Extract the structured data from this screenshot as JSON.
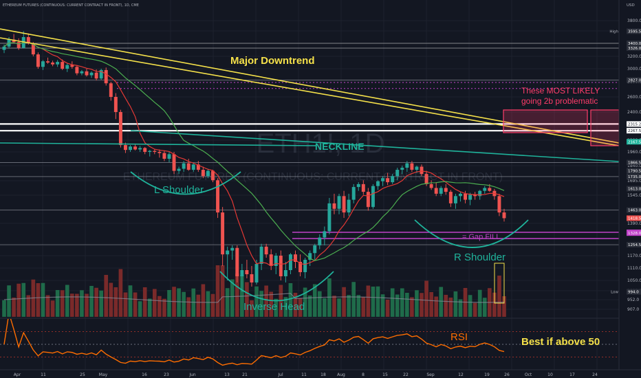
{
  "header": {
    "symbol_line": "ETHEREUM FUTURES (CONTINUOUS: CURRENT CONTRACT IN FRONT), 1D, CME",
    "currency": "USD"
  },
  "watermark": {
    "ticker": "ETH1!, 1D",
    "subtitle": "ETHEREUM FUTURES (CONTINUOUS: CURRENT CONTRACT IN FRONT)"
  },
  "colors": {
    "background": "#131722",
    "up": "#26a69a",
    "down": "#ef5350",
    "trendline": "#f5e14a",
    "neckline": "#1fb39b",
    "pink": "#ff3d6a",
    "purple": "#c042c8",
    "white_line": "#ffffff",
    "ma_fast": "#e53935",
    "ma_slow": "#4caf50",
    "rsi": "#ff6d00"
  },
  "annotations": {
    "major_downtrend": "Major Downtrend",
    "neckline": "NECKLINE",
    "l_shoulder": "L Shoulder",
    "inverse_head": "Inverse Head",
    "r_shoulder": "R Shoulder",
    "gap_fill": "= Gap FILL",
    "likely_line1": "These MOST LIKELY",
    "likely_line2": "going 2b problematic",
    "rsi": "RSI",
    "best_if": "Best if above 50"
  },
  "chart_data": {
    "type": "candlestick",
    "y_axis_labels": [
      "3800.0",
      "3600.0",
      "3400.0",
      "3200.0",
      "3000.0",
      "2800.0",
      "2600.0",
      "2400.0",
      "2200.0",
      "1960.0",
      "1840.0",
      "1695.0",
      "1545.0",
      "1390.0",
      "1250.0",
      "1170.0",
      "1110.0",
      "1050.0",
      "1000.0",
      "952.0",
      "907.0"
    ],
    "x_axis_labels": [
      "Apr",
      "11",
      "25",
      "May",
      "16",
      "23",
      "Jun",
      "13",
      "21",
      "Jul",
      "11",
      "18",
      "Aug",
      "8",
      "15",
      "22",
      "Sep",
      "12",
      "19",
      "26",
      "Oct",
      "10",
      "17",
      "24"
    ],
    "price_tags": [
      {
        "label": "High",
        "value": "3595.5",
        "color": "#2a2e39"
      },
      {
        "label": "",
        "value": "3400.0",
        "color": "#2a2e39"
      },
      {
        "label": "",
        "value": "3326.0",
        "color": "#2a2e39"
      },
      {
        "label": "",
        "value": "2827.0",
        "color": "#2a2e39"
      },
      {
        "label": "",
        "value": "2315.2",
        "color": "#ffffff"
      },
      {
        "label": "",
        "value": "2267.5",
        "color": "#ffffff"
      },
      {
        "label": "",
        "value": "2167.5",
        "color": "#1fb39b"
      },
      {
        "label": "",
        "value": "1866.5",
        "color": "#2a2e39"
      },
      {
        "label": "",
        "value": "1790.5",
        "color": "#2a2e39"
      },
      {
        "label": "",
        "value": "1735.0",
        "color": "#2a2e39"
      },
      {
        "label": "",
        "value": "1613.0",
        "color": "#2a2e39"
      },
      {
        "label": "",
        "value": "1463.0",
        "color": "#2a2e39"
      },
      {
        "label": "",
        "value": "1418.5",
        "color": "#ef5350"
      },
      {
        "label": "",
        "value": "1333.0",
        "color": "#c042c8"
      },
      {
        "label": "",
        "value": "1328.0",
        "color": "#c042c8"
      },
      {
        "label": "",
        "value": "1254.5",
        "color": "#2a2e39"
      },
      {
        "label": "Low",
        "value": "994.0",
        "color": "#2a2e39"
      }
    ],
    "rsi_axis_labels": [
      "80.00",
      "60.00",
      "40.00",
      "20.00"
    ],
    "rsi_levels": [
      70,
      50,
      30
    ],
    "candles": [
      [
        3300,
        3380,
        3250,
        3350
      ],
      [
        3350,
        3500,
        3320,
        3460
      ],
      [
        3460,
        3550,
        3400,
        3420
      ],
      [
        3420,
        3480,
        3300,
        3330
      ],
      [
        3330,
        3595.5,
        3320,
        3500
      ],
      [
        3500,
        3560,
        3380,
        3400
      ],
      [
        3400,
        3420,
        3200,
        3230
      ],
      [
        3230,
        3260,
        3000,
        3030
      ],
      [
        3030,
        3140,
        2980,
        3120
      ],
      [
        3120,
        3180,
        3080,
        3100
      ],
      [
        3100,
        3130,
        3040,
        3070
      ],
      [
        3070,
        3140,
        3030,
        3110
      ],
      [
        3110,
        3150,
        2980,
        3000
      ],
      [
        3000,
        3090,
        2950,
        3060
      ],
      [
        3060,
        3120,
        3000,
        3030
      ],
      [
        3030,
        3050,
        2900,
        2930
      ],
      [
        2930,
        2980,
        2900,
        2960
      ],
      [
        2960,
        3000,
        2880,
        2900
      ],
      [
        2900,
        2960,
        2860,
        2940
      ],
      [
        2940,
        2990,
        2820,
        2850
      ],
      [
        2850,
        3000,
        2830,
        2980
      ],
      [
        2980,
        3020,
        2750,
        2780
      ],
      [
        2780,
        2800,
        2550,
        2600
      ],
      [
        2600,
        2650,
        2350,
        2400
      ],
      [
        2400,
        2430,
        2050,
        2100
      ],
      [
        2100,
        2150,
        1950,
        2000
      ],
      [
        2000,
        2100,
        1960,
        2070
      ],
      [
        2070,
        2120,
        1990,
        2010
      ],
      [
        2010,
        2080,
        1960,
        2040
      ],
      [
        2040,
        2060,
        1940,
        1960
      ],
      [
        1960,
        2000,
        1920,
        1980
      ],
      [
        1980,
        2020,
        1940,
        1960
      ],
      [
        1960,
        2010,
        1910,
        1950
      ],
      [
        1950,
        1980,
        1880,
        1900
      ],
      [
        1900,
        1960,
        1870,
        1940
      ],
      [
        1940,
        1960,
        1760,
        1790
      ],
      [
        1790,
        1830,
        1760,
        1810
      ],
      [
        1810,
        1880,
        1780,
        1860
      ],
      [
        1860,
        1900,
        1790,
        1800
      ],
      [
        1800,
        1870,
        1780,
        1850
      ],
      [
        1850,
        1880,
        1780,
        1800
      ],
      [
        1800,
        1830,
        1720,
        1740
      ],
      [
        1740,
        1810,
        1720,
        1790
      ],
      [
        1790,
        1800,
        1680,
        1700
      ],
      [
        1700,
        1720,
        1420,
        1450
      ],
      [
        1450,
        1480,
        1120,
        1180
      ],
      [
        1180,
        1240,
        1050,
        1210
      ],
      [
        1210,
        1250,
        1150,
        1230
      ],
      [
        1230,
        1250,
        1040,
        1070
      ],
      [
        1070,
        1130,
        994,
        1100
      ],
      [
        1100,
        1150,
        1060,
        1080
      ],
      [
        1080,
        1120,
        1020,
        1040
      ],
      [
        1040,
        1150,
        1030,
        1130
      ],
      [
        1130,
        1260,
        1100,
        1240
      ],
      [
        1240,
        1260,
        1160,
        1180
      ],
      [
        1180,
        1220,
        1100,
        1120
      ],
      [
        1120,
        1190,
        1080,
        1170
      ],
      [
        1170,
        1210,
        1050,
        1070
      ],
      [
        1070,
        1140,
        1040,
        1100
      ],
      [
        1100,
        1190,
        1080,
        1180
      ],
      [
        1180,
        1210,
        1110,
        1140
      ],
      [
        1140,
        1180,
        1070,
        1090
      ],
      [
        1090,
        1160,
        1060,
        1150
      ],
      [
        1150,
        1210,
        1120,
        1190
      ],
      [
        1190,
        1260,
        1150,
        1250
      ],
      [
        1250,
        1320,
        1220,
        1300
      ],
      [
        1300,
        1370,
        1250,
        1340
      ],
      [
        1340,
        1530,
        1320,
        1500
      ],
      [
        1500,
        1560,
        1440,
        1470
      ],
      [
        1470,
        1560,
        1440,
        1540
      ],
      [
        1540,
        1590,
        1420,
        1450
      ],
      [
        1450,
        1560,
        1430,
        1520
      ],
      [
        1520,
        1660,
        1500,
        1630
      ],
      [
        1630,
        1680,
        1590,
        1660
      ],
      [
        1660,
        1700,
        1550,
        1580
      ],
      [
        1580,
        1620,
        1460,
        1480
      ],
      [
        1480,
        1660,
        1470,
        1640
      ],
      [
        1640,
        1700,
        1600,
        1690
      ],
      [
        1690,
        1740,
        1640,
        1720
      ],
      [
        1720,
        1770,
        1650,
        1680
      ],
      [
        1680,
        1760,
        1660,
        1740
      ],
      [
        1740,
        1820,
        1700,
        1800
      ],
      [
        1800,
        1840,
        1760,
        1820
      ],
      [
        1820,
        1880,
        1780,
        1860
      ],
      [
        1860,
        1880,
        1780,
        1800
      ],
      [
        1800,
        1840,
        1770,
        1830
      ],
      [
        1830,
        1850,
        1740,
        1760
      ],
      [
        1760,
        1790,
        1640,
        1660
      ],
      [
        1660,
        1700,
        1600,
        1620
      ],
      [
        1620,
        1680,
        1540,
        1560
      ],
      [
        1560,
        1640,
        1540,
        1620
      ],
      [
        1620,
        1660,
        1550,
        1580
      ],
      [
        1580,
        1600,
        1480,
        1500
      ],
      [
        1500,
        1560,
        1470,
        1540
      ],
      [
        1540,
        1580,
        1510,
        1560
      ],
      [
        1560,
        1590,
        1500,
        1520
      ],
      [
        1520,
        1570,
        1490,
        1550
      ],
      [
        1550,
        1580,
        1520,
        1540
      ],
      [
        1540,
        1600,
        1520,
        1590
      ],
      [
        1590,
        1640,
        1560,
        1620
      ],
      [
        1620,
        1660,
        1580,
        1590
      ],
      [
        1590,
        1610,
        1520,
        1540
      ],
      [
        1540,
        1560,
        1430,
        1450
      ],
      [
        1450,
        1470,
        1400,
        1418.5
      ]
    ]
  }
}
